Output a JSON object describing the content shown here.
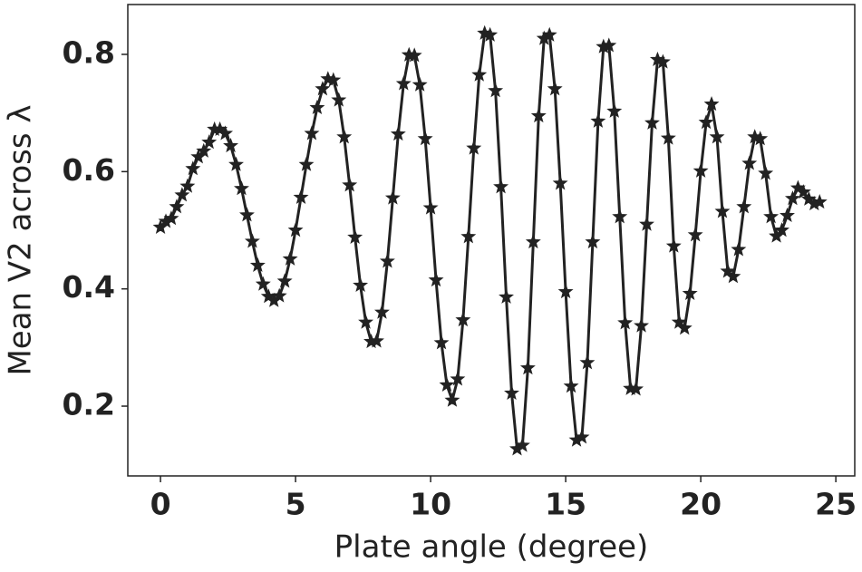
{
  "chart_data": {
    "type": "line",
    "x_label": "Plate angle (degree)",
    "y_label": "Mean V2 across λ",
    "xlim": [
      -1.21,
      25.7
    ],
    "ylim": [
      0.081,
      0.885
    ],
    "xticks": [
      0,
      5,
      10,
      15,
      20,
      25
    ],
    "yticks": [
      0.2,
      0.4,
      0.6,
      0.8
    ],
    "grid": false,
    "marker": "star",
    "series": [
      {
        "color": "#222222",
        "x": [
          0,
          0.2,
          0.4,
          0.6,
          0.8,
          1.0,
          1.2,
          1.4,
          1.6,
          1.8,
          2.0,
          2.2,
          2.4,
          2.6,
          2.8,
          3.0,
          3.2,
          3.4,
          3.6,
          3.8,
          4.0,
          4.2,
          4.4,
          4.6,
          4.8,
          5.0,
          5.2,
          5.4,
          5.6,
          5.8,
          6.0,
          6.2,
          6.4,
          6.6,
          6.8,
          7.0,
          7.2,
          7.4,
          7.6,
          7.8,
          8.0,
          8.2,
          8.4,
          8.6,
          8.8,
          9.0,
          9.2,
          9.4,
          9.6,
          9.8,
          10.0,
          10.2,
          10.4,
          10.6,
          10.8,
          11.0,
          11.2,
          11.4,
          11.6,
          11.8,
          12.0,
          12.2,
          12.4,
          12.6,
          12.8,
          13.0,
          13.2,
          13.4,
          13.6,
          13.8,
          14.0,
          14.2,
          14.4,
          14.6,
          14.8,
          15.0,
          15.2,
          15.4,
          15.6,
          15.8,
          16.0,
          16.2,
          16.4,
          16.6,
          16.8,
          17.0,
          17.2,
          17.4,
          17.6,
          17.8,
          18.0,
          18.2,
          18.4,
          18.6,
          18.8,
          19.0,
          19.2,
          19.4,
          19.6,
          19.8,
          20.0,
          20.2,
          20.4,
          20.6,
          20.8,
          21.0,
          21.2,
          21.4,
          21.6,
          21.8,
          22.0,
          22.2,
          22.4,
          22.6,
          22.8,
          23.0,
          23.2,
          23.4,
          23.6,
          23.8,
          24.0,
          24.2,
          24.4
        ],
        "values": [
          0.505,
          0.515,
          0.52,
          0.54,
          0.56,
          0.575,
          0.605,
          0.625,
          0.635,
          0.65,
          0.672,
          0.672,
          0.665,
          0.644,
          0.612,
          0.571,
          0.526,
          0.481,
          0.44,
          0.408,
          0.387,
          0.38,
          0.388,
          0.413,
          0.451,
          0.5,
          0.556,
          0.612,
          0.665,
          0.709,
          0.741,
          0.758,
          0.756,
          0.722,
          0.659,
          0.577,
          0.488,
          0.406,
          0.343,
          0.31,
          0.311,
          0.36,
          0.447,
          0.555,
          0.664,
          0.75,
          0.799,
          0.798,
          0.748,
          0.656,
          0.538,
          0.415,
          0.308,
          0.236,
          0.21,
          0.246,
          0.347,
          0.489,
          0.64,
          0.765,
          0.836,
          0.833,
          0.738,
          0.574,
          0.386,
          0.222,
          0.127,
          0.133,
          0.265,
          0.48,
          0.695,
          0.827,
          0.833,
          0.741,
          0.58,
          0.395,
          0.234,
          0.142,
          0.147,
          0.274,
          0.48,
          0.686,
          0.813,
          0.815,
          0.703,
          0.523,
          0.342,
          0.23,
          0.229,
          0.337,
          0.51,
          0.683,
          0.791,
          0.787,
          0.657,
          0.473,
          0.343,
          0.333,
          0.392,
          0.492,
          0.601,
          0.684,
          0.715,
          0.659,
          0.532,
          0.43,
          0.421,
          0.467,
          0.54,
          0.614,
          0.659,
          0.656,
          0.597,
          0.523,
          0.49,
          0.5,
          0.525,
          0.554,
          0.572,
          0.565,
          0.553,
          0.545,
          0.548
        ]
      }
    ]
  }
}
